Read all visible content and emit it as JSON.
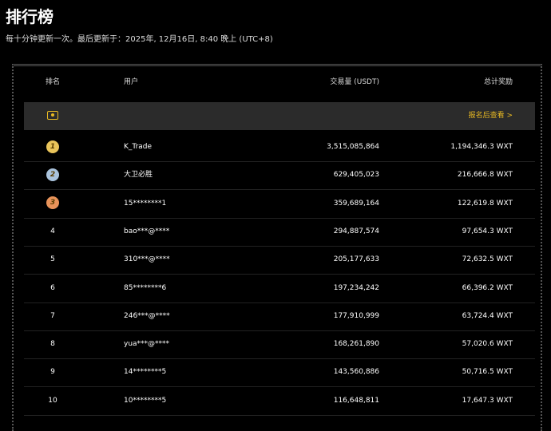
{
  "page": {
    "title": "排行榜",
    "subtitle": "每十分钟更新一次。最后更新于：2025年, 12月16日, 8:40 晚上 (UTC+8)"
  },
  "table": {
    "headers": {
      "rank": "排名",
      "user": "用户",
      "volume": "交易量 (USDT)",
      "reward": "总计奖励"
    },
    "my_row": {
      "icon": "user-badge-icon",
      "link": "报名后查看 >",
      "accent": "#e8b923"
    },
    "medal_colors": [
      "#e9c45a",
      "#aac3dc",
      "#e8935a"
    ],
    "rows": [
      {
        "rank": "1",
        "user": "K_Trade",
        "volume": "3,515,085,864",
        "reward": "1,194,346.3 WXT"
      },
      {
        "rank": "2",
        "user": "大卫必胜",
        "volume": "629,405,023",
        "reward": "216,666.8 WXT"
      },
      {
        "rank": "3",
        "user": "15********1",
        "volume": "359,689,164",
        "reward": "122,619.8 WXT"
      },
      {
        "rank": "4",
        "user": "bao***@****",
        "volume": "294,887,574",
        "reward": "97,654.3 WXT"
      },
      {
        "rank": "5",
        "user": "310***@****",
        "volume": "205,177,633",
        "reward": "72,632.5 WXT"
      },
      {
        "rank": "6",
        "user": "85********6",
        "volume": "197,234,242",
        "reward": "66,396.2 WXT"
      },
      {
        "rank": "7",
        "user": "246***@****",
        "volume": "177,910,999",
        "reward": "63,724.4 WXT"
      },
      {
        "rank": "8",
        "user": "yua***@****",
        "volume": "168,261,890",
        "reward": "57,020.6 WXT"
      },
      {
        "rank": "9",
        "user": "14********5",
        "volume": "143,560,886",
        "reward": "50,716.5 WXT"
      },
      {
        "rank": "10",
        "user": "10********5",
        "volume": "116,648,811",
        "reward": "17,647.3 WXT"
      }
    ]
  }
}
